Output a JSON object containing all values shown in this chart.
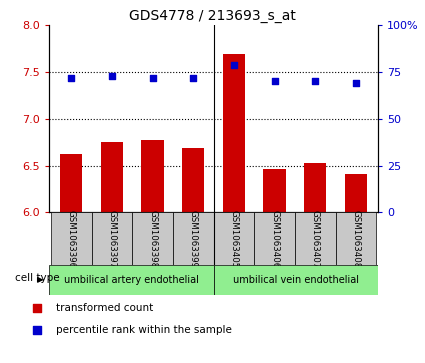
{
  "title": "GDS4778 / 213693_s_at",
  "samples": [
    "GSM1063396",
    "GSM1063397",
    "GSM1063398",
    "GSM1063399",
    "GSM1063405",
    "GSM1063406",
    "GSM1063407",
    "GSM1063408"
  ],
  "transformed_counts": [
    6.62,
    6.75,
    6.77,
    6.69,
    7.69,
    6.46,
    6.53,
    6.41
  ],
  "percentile_ranks": [
    72,
    73,
    72,
    72,
    79,
    70,
    70,
    69
  ],
  "ylim_left": [
    6.0,
    8.0
  ],
  "ylim_right": [
    0,
    100
  ],
  "yticks_left": [
    6.0,
    6.5,
    7.0,
    7.5,
    8.0
  ],
  "yticks_right": [
    0,
    25,
    50,
    75,
    100
  ],
  "yticklabels_right": [
    "0",
    "25",
    "50",
    "75",
    "100%"
  ],
  "bar_color": "#cc0000",
  "dot_color": "#0000cc",
  "grid_color": "#000000",
  "group1_label": "umbilical artery endothelial",
  "group2_label": "umbilical vein endothelial",
  "group_color": "#90ee90",
  "cell_type_label": "cell type",
  "legend_bar_label": "transformed count",
  "legend_dot_label": "percentile rank within the sample",
  "bar_width": 0.55,
  "tick_label_color_left": "#cc0000",
  "tick_label_color_right": "#0000cc",
  "background_label": "#c8c8c8",
  "n_group1": 4,
  "n_group2": 4
}
